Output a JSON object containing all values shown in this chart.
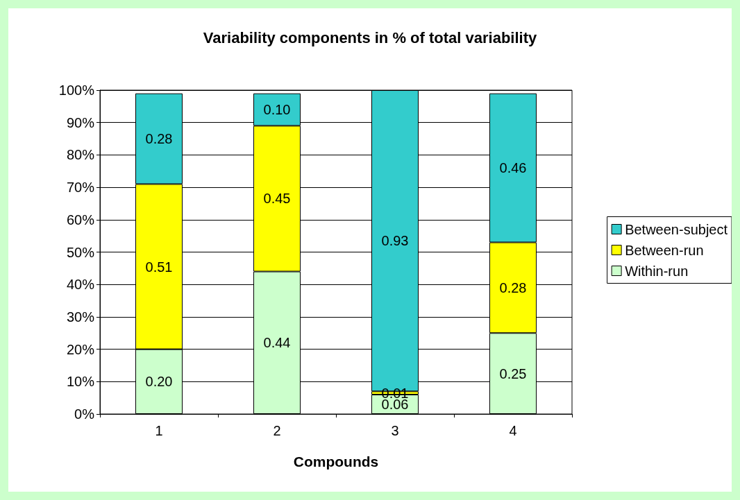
{
  "chart_data": {
    "type": "bar",
    "title": "Variability components in % of total variability",
    "xlabel": "Compounds",
    "categories": [
      "1",
      "2",
      "3",
      "4"
    ],
    "stacked": true,
    "series": [
      {
        "name": "Within-run",
        "color": "#ccffcc",
        "values": [
          0.2,
          0.44,
          0.06,
          0.25
        ],
        "value_labels": [
          "0.20",
          "0.44",
          "0.06",
          "0.25"
        ]
      },
      {
        "name": "Between-run",
        "color": "#ffff00",
        "values": [
          0.51,
          0.45,
          0.01,
          0.28
        ],
        "value_labels": [
          "0.51",
          "0.45",
          "0.01",
          "0.28"
        ]
      },
      {
        "name": "Between-subject",
        "color": "#33cccc",
        "values": [
          0.28,
          0.1,
          0.93,
          0.46
        ],
        "value_labels": [
          "0.28",
          "0.10",
          "0.93",
          "0.46"
        ]
      }
    ],
    "ylim": [
      0,
      1
    ],
    "yticks": [
      {
        "value": 0,
        "label": "0%"
      },
      {
        "value": 0.1,
        "label": "10%"
      },
      {
        "value": 0.2,
        "label": "20%"
      },
      {
        "value": 0.3,
        "label": "30%"
      },
      {
        "value": 0.4,
        "label": "40%"
      },
      {
        "value": 0.5,
        "label": "50%"
      },
      {
        "value": 0.6,
        "label": "60%"
      },
      {
        "value": 0.7,
        "label": "70%"
      },
      {
        "value": 0.8,
        "label": "80%"
      },
      {
        "value": 0.9,
        "label": "90%"
      },
      {
        "value": 1,
        "label": "100%"
      }
    ],
    "grid": "y",
    "legend": "right"
  }
}
